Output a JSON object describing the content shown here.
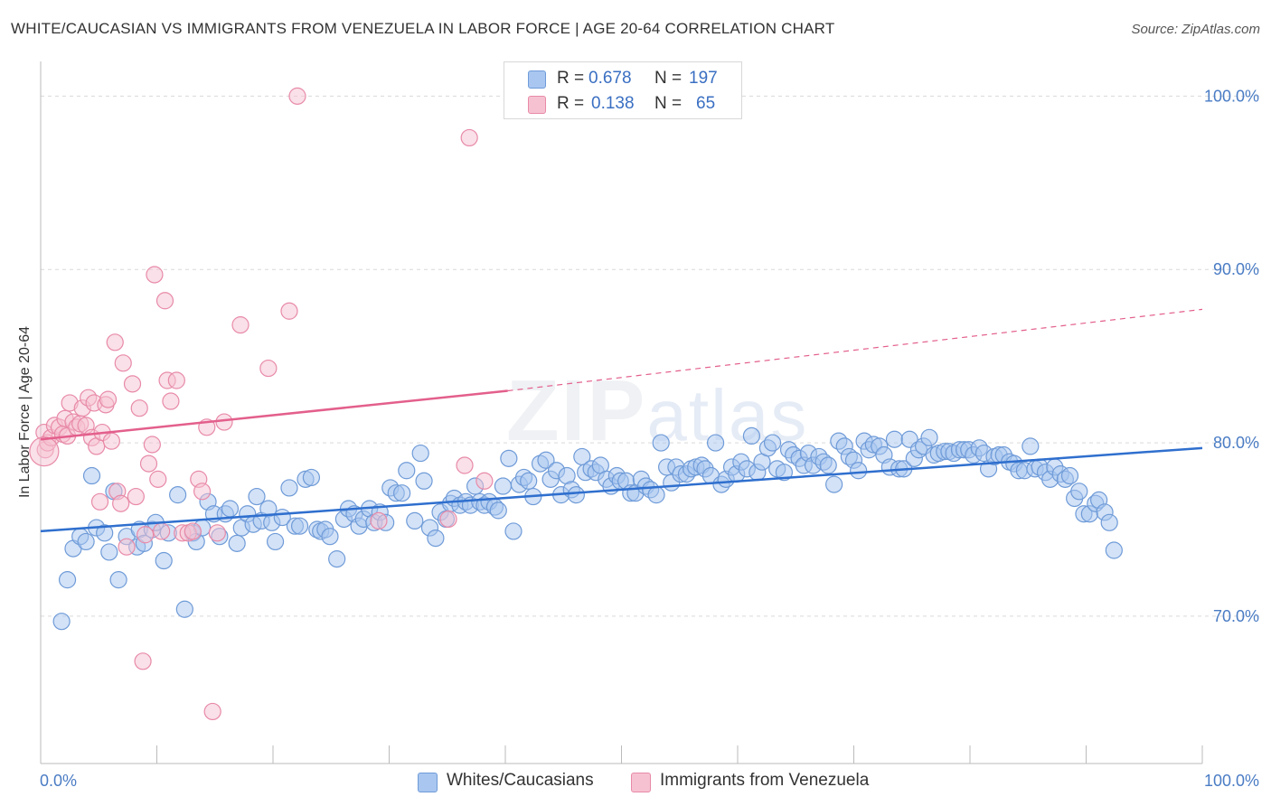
{
  "header": {
    "title": "WHITE/CAUCASIAN VS IMMIGRANTS FROM VENEZUELA IN LABOR FORCE | AGE 20-64 CORRELATION CHART",
    "source": "Source: ZipAtlas.com"
  },
  "watermark": {
    "main": "ZIP",
    "sub": "atlas"
  },
  "stats": [
    {
      "r_label": "R =",
      "r_value": "0.678",
      "n_label": "N =",
      "n_value": "197",
      "color": "#a8c6f0"
    },
    {
      "r_label": "R =",
      "r_value": "0.138",
      "n_label": "N =",
      "n_value": "65",
      "color": "#f6b6c8"
    }
  ],
  "legend": [
    {
      "label": "Whites/Caucasians",
      "color": "#a8c6f0",
      "border": "#6f9bd8"
    },
    {
      "label": "Immigrants from Venezuela",
      "color": "#f6c2d2",
      "border": "#e88aa8"
    }
  ],
  "chart_data": {
    "type": "scatter",
    "xlabel": "",
    "ylabel": "In Labor Force | Age 20-64",
    "xlim": [
      0,
      100
    ],
    "ylim": [
      61.5,
      102
    ],
    "x_tick_labels": [
      {
        "value": 0,
        "label": "0.0%"
      },
      {
        "value": 100,
        "label": "100.0%"
      }
    ],
    "y_ticks": [
      {
        "value": 70,
        "label": "70.0%"
      },
      {
        "value": 80,
        "label": "80.0%"
      },
      {
        "value": 90,
        "label": "90.0%"
      },
      {
        "value": 100,
        "label": "100.0%"
      }
    ],
    "grid": "horizontal dashed",
    "legend_position": "bottom-center",
    "series": [
      {
        "name": "Whites/Caucasians",
        "color": "#a8c6f0",
        "edge": "#6f9bd8",
        "trend": {
          "x": [
            0,
            100
          ],
          "y": [
            74.9,
            79.7
          ],
          "color": "#2f6fce"
        },
        "points": [
          [
            1.8,
            69.7
          ],
          [
            2.3,
            72.1
          ],
          [
            2.8,
            73.9
          ],
          [
            3.4,
            74.6
          ],
          [
            3.9,
            74.3
          ],
          [
            4.4,
            78.1
          ],
          [
            4.8,
            75.1
          ],
          [
            5.5,
            74.8
          ],
          [
            5.9,
            73.7
          ],
          [
            6.3,
            77.2
          ],
          [
            6.7,
            72.1
          ],
          [
            7.4,
            74.6
          ],
          [
            8.3,
            74.0
          ],
          [
            8.5,
            75.0
          ],
          [
            8.9,
            74.2
          ],
          [
            9.6,
            75.0
          ],
          [
            9.9,
            75.4
          ],
          [
            10.6,
            73.2
          ],
          [
            11.0,
            74.8
          ],
          [
            11.8,
            77.0
          ],
          [
            12.4,
            70.4
          ],
          [
            13.1,
            74.8
          ],
          [
            13.4,
            74.3
          ],
          [
            13.9,
            75.1
          ],
          [
            14.4,
            76.6
          ],
          [
            14.9,
            75.9
          ],
          [
            15.4,
            74.6
          ],
          [
            15.9,
            75.9
          ],
          [
            16.3,
            76.2
          ],
          [
            16.9,
            74.2
          ],
          [
            17.3,
            75.1
          ],
          [
            17.8,
            75.9
          ],
          [
            18.3,
            75.3
          ],
          [
            18.6,
            76.9
          ],
          [
            19.0,
            75.5
          ],
          [
            19.6,
            76.2
          ],
          [
            19.9,
            75.4
          ],
          [
            20.2,
            74.3
          ],
          [
            20.8,
            75.7
          ],
          [
            21.4,
            77.4
          ],
          [
            21.9,
            75.2
          ],
          [
            22.3,
            75.2
          ],
          [
            22.8,
            77.9
          ],
          [
            23.3,
            78.0
          ],
          [
            23.8,
            75.0
          ],
          [
            24.1,
            74.9
          ],
          [
            24.5,
            75.0
          ],
          [
            24.9,
            74.6
          ],
          [
            25.5,
            73.3
          ],
          [
            26.1,
            75.6
          ],
          [
            26.5,
            76.2
          ],
          [
            27.0,
            75.9
          ],
          [
            27.4,
            75.2
          ],
          [
            27.8,
            75.6
          ],
          [
            28.3,
            76.2
          ],
          [
            28.7,
            75.4
          ],
          [
            29.2,
            76.0
          ],
          [
            29.7,
            75.4
          ],
          [
            30.1,
            77.4
          ],
          [
            30.6,
            77.1
          ],
          [
            31.1,
            77.1
          ],
          [
            31.5,
            78.4
          ],
          [
            32.2,
            75.5
          ],
          [
            32.7,
            79.4
          ],
          [
            33.0,
            77.8
          ],
          [
            33.5,
            75.1
          ],
          [
            34.0,
            74.5
          ],
          [
            34.4,
            76.0
          ],
          [
            34.9,
            75.6
          ],
          [
            35.3,
            76.5
          ],
          [
            35.6,
            76.8
          ],
          [
            36.1,
            76.4
          ],
          [
            36.6,
            76.6
          ],
          [
            37.0,
            76.4
          ],
          [
            37.4,
            77.5
          ],
          [
            37.8,
            76.6
          ],
          [
            38.2,
            76.4
          ],
          [
            38.6,
            76.6
          ],
          [
            39.1,
            76.3
          ],
          [
            39.4,
            76.1
          ],
          [
            39.8,
            77.5
          ],
          [
            40.3,
            79.1
          ],
          [
            40.7,
            74.9
          ],
          [
            41.2,
            77.6
          ],
          [
            41.6,
            78.0
          ],
          [
            42.0,
            77.8
          ],
          [
            42.4,
            76.9
          ],
          [
            43.0,
            78.8
          ],
          [
            43.5,
            79.0
          ],
          [
            43.9,
            77.9
          ],
          [
            44.4,
            78.4
          ],
          [
            44.8,
            77.0
          ],
          [
            45.3,
            78.1
          ],
          [
            45.7,
            77.3
          ],
          [
            46.1,
            77.0
          ],
          [
            46.6,
            79.2
          ],
          [
            46.9,
            78.3
          ],
          [
            47.4,
            78.5
          ],
          [
            47.8,
            78.3
          ],
          [
            48.2,
            78.7
          ],
          [
            48.7,
            77.9
          ],
          [
            49.1,
            77.5
          ],
          [
            49.6,
            78.1
          ],
          [
            49.9,
            77.8
          ],
          [
            50.4,
            77.8
          ],
          [
            50.8,
            77.1
          ],
          [
            51.2,
            77.1
          ],
          [
            51.7,
            77.9
          ],
          [
            52.1,
            77.5
          ],
          [
            52.5,
            77.3
          ],
          [
            53.0,
            77.0
          ],
          [
            53.4,
            80.0
          ],
          [
            53.9,
            78.6
          ],
          [
            54.3,
            77.7
          ],
          [
            54.7,
            78.6
          ],
          [
            55.1,
            78.2
          ],
          [
            55.6,
            78.2
          ],
          [
            56.0,
            78.5
          ],
          [
            56.4,
            78.6
          ],
          [
            56.9,
            78.7
          ],
          [
            57.2,
            78.5
          ],
          [
            57.7,
            78.1
          ],
          [
            58.1,
            80.0
          ],
          [
            58.6,
            77.6
          ],
          [
            59.0,
            77.9
          ],
          [
            59.5,
            78.6
          ],
          [
            59.9,
            78.2
          ],
          [
            60.3,
            78.9
          ],
          [
            60.8,
            78.5
          ],
          [
            61.2,
            80.4
          ],
          [
            61.7,
            78.3
          ],
          [
            62.1,
            78.9
          ],
          [
            62.6,
            79.7
          ],
          [
            63.0,
            80.0
          ],
          [
            63.4,
            78.5
          ],
          [
            64.0,
            78.3
          ],
          [
            64.4,
            79.6
          ],
          [
            64.8,
            79.3
          ],
          [
            65.3,
            79.1
          ],
          [
            65.7,
            78.7
          ],
          [
            66.1,
            79.4
          ],
          [
            66.5,
            78.7
          ],
          [
            67.0,
            79.2
          ],
          [
            67.4,
            78.9
          ],
          [
            67.8,
            78.7
          ],
          [
            68.3,
            77.6
          ],
          [
            68.7,
            80.1
          ],
          [
            69.2,
            79.8
          ],
          [
            69.6,
            79.2
          ],
          [
            70.0,
            79.0
          ],
          [
            70.4,
            78.4
          ],
          [
            70.9,
            80.1
          ],
          [
            71.3,
            79.6
          ],
          [
            71.7,
            79.9
          ],
          [
            72.2,
            79.8
          ],
          [
            72.6,
            79.3
          ],
          [
            73.1,
            78.6
          ],
          [
            73.5,
            80.2
          ],
          [
            73.9,
            78.5
          ],
          [
            74.3,
            78.5
          ],
          [
            74.8,
            80.2
          ],
          [
            75.2,
            79.1
          ],
          [
            75.6,
            79.6
          ],
          [
            76.0,
            79.8
          ],
          [
            76.5,
            80.3
          ],
          [
            76.9,
            79.3
          ],
          [
            77.3,
            79.4
          ],
          [
            77.8,
            79.5
          ],
          [
            78.2,
            79.5
          ],
          [
            78.6,
            79.4
          ],
          [
            79.1,
            79.6
          ],
          [
            79.5,
            79.6
          ],
          [
            79.9,
            79.6
          ],
          [
            80.3,
            79.3
          ],
          [
            80.8,
            79.7
          ],
          [
            81.2,
            79.4
          ],
          [
            81.6,
            78.5
          ],
          [
            82.1,
            79.2
          ],
          [
            82.5,
            79.3
          ],
          [
            82.9,
            79.3
          ],
          [
            83.4,
            78.9
          ],
          [
            83.8,
            78.8
          ],
          [
            84.2,
            78.4
          ],
          [
            84.7,
            78.4
          ],
          [
            85.2,
            79.8
          ],
          [
            85.6,
            78.5
          ],
          [
            86.0,
            78.6
          ],
          [
            86.5,
            78.3
          ],
          [
            86.9,
            77.9
          ],
          [
            87.3,
            78.6
          ],
          [
            87.8,
            78.2
          ],
          [
            88.2,
            77.9
          ],
          [
            88.6,
            78.1
          ],
          [
            89.0,
            76.8
          ],
          [
            89.4,
            77.2
          ],
          [
            89.8,
            75.9
          ],
          [
            90.3,
            75.9
          ],
          [
            90.8,
            76.5
          ],
          [
            91.1,
            76.7
          ],
          [
            91.6,
            76.0
          ],
          [
            92.0,
            75.4
          ],
          [
            92.4,
            73.8
          ]
        ]
      },
      {
        "name": "Immigrants from Venezuela",
        "color": "#f6c2d2",
        "edge": "#e88aa8",
        "trend": {
          "x": [
            0,
            40.2
          ],
          "y": [
            80.2,
            83.0
          ],
          "color": "#e35f8c"
        },
        "trend_extension": {
          "x": [
            40.2,
            100
          ],
          "y": [
            83.0,
            87.7
          ]
        },
        "points": [
          [
            0.3,
            80.6
          ],
          [
            0.4,
            79.6
          ],
          [
            0.6,
            80.0
          ],
          [
            0.9,
            80.3
          ],
          [
            1.2,
            81.0
          ],
          [
            1.6,
            80.9
          ],
          [
            1.9,
            80.5
          ],
          [
            2.1,
            81.4
          ],
          [
            2.3,
            80.4
          ],
          [
            2.5,
            82.3
          ],
          [
            2.8,
            81.2
          ],
          [
            3.1,
            80.9
          ],
          [
            3.4,
            81.1
          ],
          [
            3.6,
            82.0
          ],
          [
            3.9,
            81.0
          ],
          [
            4.1,
            82.6
          ],
          [
            4.4,
            80.3
          ],
          [
            4.6,
            82.3
          ],
          [
            4.8,
            79.8
          ],
          [
            5.1,
            76.6
          ],
          [
            5.3,
            80.6
          ],
          [
            5.6,
            82.2
          ],
          [
            5.8,
            82.5
          ],
          [
            6.1,
            80.1
          ],
          [
            6.4,
            85.8
          ],
          [
            6.6,
            77.2
          ],
          [
            6.9,
            76.5
          ],
          [
            7.1,
            84.6
          ],
          [
            7.4,
            74.0
          ],
          [
            7.9,
            83.4
          ],
          [
            8.2,
            76.9
          ],
          [
            8.5,
            82.0
          ],
          [
            8.8,
            67.4
          ],
          [
            9.0,
            74.7
          ],
          [
            9.3,
            78.8
          ],
          [
            9.6,
            79.9
          ],
          [
            9.8,
            89.7
          ],
          [
            10.1,
            77.9
          ],
          [
            10.4,
            74.9
          ],
          [
            10.7,
            88.2
          ],
          [
            10.9,
            83.6
          ],
          [
            11.2,
            82.4
          ],
          [
            11.7,
            83.6
          ],
          [
            12.2,
            74.8
          ],
          [
            12.7,
            74.8
          ],
          [
            13.1,
            74.9
          ],
          [
            13.6,
            77.9
          ],
          [
            13.9,
            77.2
          ],
          [
            14.3,
            80.9
          ],
          [
            14.8,
            64.5
          ],
          [
            15.2,
            74.8
          ],
          [
            15.8,
            81.2
          ],
          [
            17.2,
            86.8
          ],
          [
            19.6,
            84.3
          ],
          [
            21.4,
            87.6
          ],
          [
            22.1,
            100.0
          ],
          [
            29.1,
            75.5
          ],
          [
            35.1,
            75.6
          ],
          [
            36.5,
            78.7
          ],
          [
            36.9,
            97.6
          ],
          [
            38.2,
            77.8
          ]
        ]
      }
    ]
  }
}
